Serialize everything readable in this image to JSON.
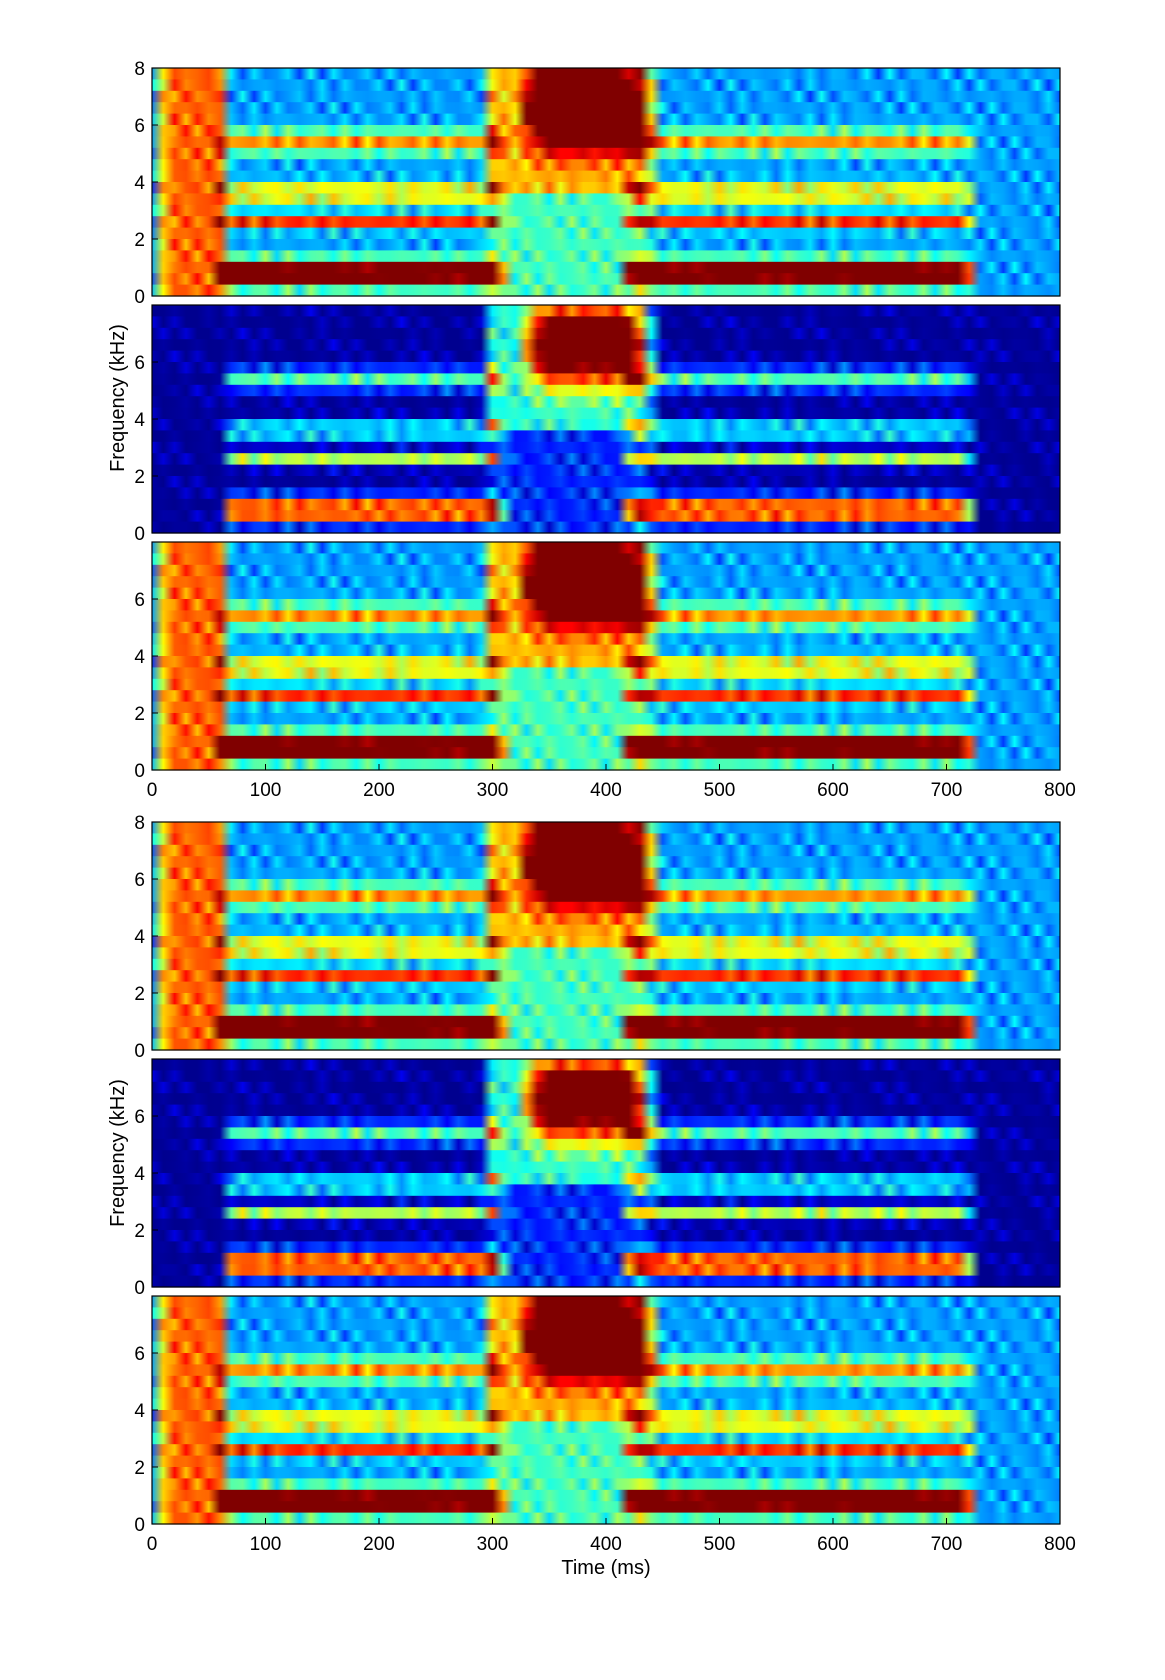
{
  "figure": {
    "group_labels": {
      "ylabel": "Frequency (kHz)",
      "xlabel": "Time (ms)"
    },
    "colormap": [
      "#00008f",
      "#0000ff",
      "#0080ff",
      "#00ffff",
      "#80ff80",
      "#ffff00",
      "#ff8000",
      "#ff0000",
      "#800000"
    ]
  },
  "chart_data": [
    {
      "type": "heatmap",
      "group": 1,
      "panel": 1,
      "style": "narrowband",
      "masked": false,
      "xlim": [
        0,
        800
      ],
      "ylim": [
        0,
        8
      ],
      "yticks": [
        "0",
        "2",
        "4",
        "6",
        "8"
      ],
      "xticks": [],
      "xlabel": "",
      "ylabel": ""
    },
    {
      "type": "heatmap",
      "group": 1,
      "panel": 2,
      "style": "narrowband",
      "masked": true,
      "xlim": [
        0,
        800
      ],
      "ylim": [
        0,
        8
      ],
      "yticks": [
        "0",
        "2",
        "4",
        "6"
      ],
      "xticks": [],
      "xlabel": "",
      "ylabel": "Frequency (kHz)"
    },
    {
      "type": "heatmap",
      "group": 1,
      "panel": 3,
      "style": "narrowband",
      "masked": false,
      "xlim": [
        0,
        800
      ],
      "ylim": [
        0,
        8
      ],
      "yticks": [
        "0",
        "2",
        "4",
        "6"
      ],
      "xticks": [
        "0",
        "100",
        "200",
        "300",
        "400",
        "500",
        "600",
        "700",
        "800"
      ],
      "xlabel": "",
      "ylabel": ""
    },
    {
      "type": "heatmap",
      "group": 2,
      "panel": 1,
      "style": "wideband",
      "masked": false,
      "xlim": [
        0,
        800
      ],
      "ylim": [
        0,
        8
      ],
      "yticks": [
        "0",
        "2",
        "4",
        "6",
        "8"
      ],
      "xticks": [],
      "xlabel": "",
      "ylabel": ""
    },
    {
      "type": "heatmap",
      "group": 2,
      "panel": 2,
      "style": "wideband",
      "masked": true,
      "xlim": [
        0,
        800
      ],
      "ylim": [
        0,
        8
      ],
      "yticks": [
        "0",
        "2",
        "4",
        "6"
      ],
      "xticks": [],
      "xlabel": "",
      "ylabel": "Frequency (kHz)"
    },
    {
      "type": "heatmap",
      "group": 2,
      "panel": 3,
      "style": "wideband",
      "masked": false,
      "xlim": [
        0,
        800
      ],
      "ylim": [
        0,
        8
      ],
      "yticks": [
        "0",
        "2",
        "4",
        "6"
      ],
      "xticks": [
        "0",
        "100",
        "200",
        "300",
        "400",
        "500",
        "600",
        "700",
        "800"
      ],
      "xlabel": "Time (ms)",
      "ylabel": ""
    }
  ]
}
